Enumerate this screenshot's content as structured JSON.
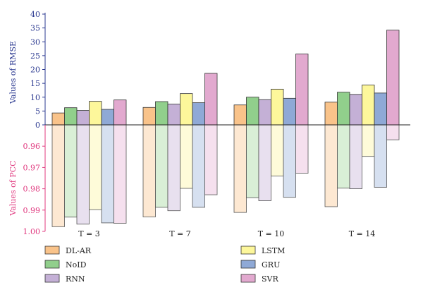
{
  "chart_data": {
    "type": "bar",
    "categories": [
      "T = 3",
      "T = 7",
      "T = 10",
      "T = 14"
    ],
    "top_axis": {
      "label": "Values of RMSE",
      "ylim": [
        0,
        40
      ],
      "ticks": [
        "0",
        "5",
        "10",
        "15",
        "20",
        "25",
        "30",
        "35",
        "40"
      ],
      "color": "#2b3990"
    },
    "bottom_axis": {
      "label": "Values of PCC",
      "ylim": [
        0.95,
        1.0
      ],
      "ticks": [
        "0.96",
        "0.97",
        "0.98",
        "0.99",
        "1.00"
      ],
      "color": "#e0397f",
      "inverted": true
    },
    "series": [
      {
        "name": "DL-AR",
        "color": "#f9c38a",
        "light": "#fde8d2",
        "rmse": [
          4.3,
          6.3,
          7.2,
          8.2
        ],
        "pcc": [
          0.9978,
          0.9932,
          0.9911,
          0.9884
        ]
      },
      {
        "name": "NoID",
        "color": "#91cf8c",
        "light": "#d9efd6",
        "rmse": [
          6.2,
          8.4,
          10.0,
          11.8
        ],
        "pcc": [
          0.9933,
          0.9887,
          0.9842,
          0.9797
        ]
      },
      {
        "name": "RNN",
        "color": "#c4b0d6",
        "light": "#e8e0ef",
        "rmse": [
          5.2,
          7.5,
          9.1,
          11.0
        ],
        "pcc": [
          0.9966,
          0.9903,
          0.9856,
          0.98
        ]
      },
      {
        "name": "LSTM",
        "color": "#fdf79b",
        "light": "#fefbd9",
        "rmse": [
          8.5,
          11.3,
          12.9,
          14.4
        ],
        "pcc": [
          0.9898,
          0.9798,
          0.974,
          0.9648
        ]
      },
      {
        "name": "GRU",
        "color": "#8fa9d6",
        "light": "#d6e0f0",
        "rmse": [
          5.6,
          8.0,
          9.6,
          11.5
        ],
        "pcc": [
          0.996,
          0.9887,
          0.984,
          0.9793
        ]
      },
      {
        "name": "SVR",
        "color": "#e2a9cf",
        "light": "#f5e0ee",
        "rmse": [
          9.0,
          18.6,
          25.6,
          34.2
        ],
        "pcc": [
          0.9962,
          0.9828,
          0.9727,
          0.957
        ]
      }
    ]
  }
}
